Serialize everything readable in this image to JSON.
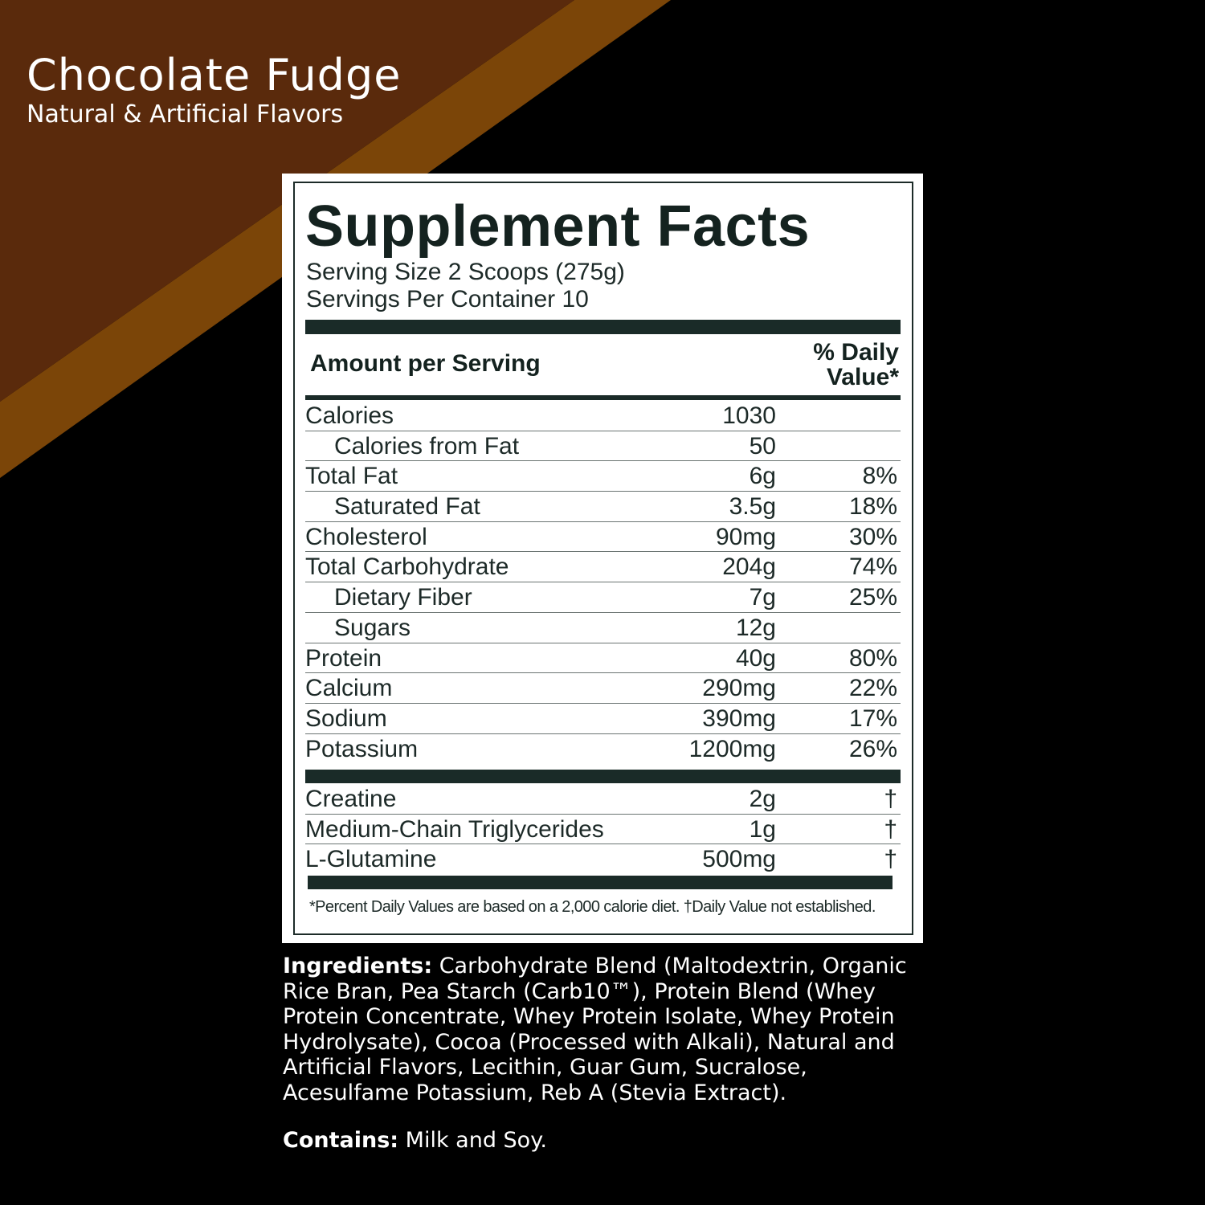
{
  "flavor": {
    "title": "Chocolate Fudge",
    "subtitle": "Natural & Artificial Flavors"
  },
  "colors": {
    "background": "#000000",
    "stripe_dark": "#5a2a0c",
    "stripe_light": "#7b4508",
    "panel_text": "#14221f"
  },
  "facts": {
    "title": "Supplement Facts",
    "serving_size": "Serving Size 2 Scoops (275g)",
    "servings_per_container": "Servings Per Container 10",
    "amount_header": "Amount per Serving",
    "dv_header_line1": "% Daily",
    "dv_header_line2": "Value*",
    "nutrients": [
      {
        "name": "Calories",
        "amount": "1030",
        "dv": "",
        "indent": false
      },
      {
        "name": "Calories from Fat",
        "amount": "50",
        "dv": "",
        "indent": true
      },
      {
        "name": "Total Fat",
        "amount": "6g",
        "dv": "8%",
        "indent": false
      },
      {
        "name": "Saturated Fat",
        "amount": "3.5g",
        "dv": "18%",
        "indent": true
      },
      {
        "name": "Cholesterol",
        "amount": "90mg",
        "dv": "30%",
        "indent": false
      },
      {
        "name": "Total Carbohydrate",
        "amount": "204g",
        "dv": "74%",
        "indent": false
      },
      {
        "name": "Dietary Fiber",
        "amount": "7g",
        "dv": "25%",
        "indent": true
      },
      {
        "name": "Sugars",
        "amount": "12g",
        "dv": "",
        "indent": true
      },
      {
        "name": "Protein",
        "amount": "40g",
        "dv": "80%",
        "indent": false
      },
      {
        "name": "Calcium",
        "amount": "290mg",
        "dv": "22%",
        "indent": false
      },
      {
        "name": "Sodium",
        "amount": "390mg",
        "dv": "17%",
        "indent": false
      },
      {
        "name": "Potassium",
        "amount": "1200mg",
        "dv": "26%",
        "indent": false
      }
    ],
    "other": [
      {
        "name": "Creatine",
        "amount": "2g",
        "dv": "†"
      },
      {
        "name": "Medium-Chain Triglycerides",
        "amount": "1g",
        "dv": "†"
      },
      {
        "name": "L-Glutamine",
        "amount": "500mg",
        "dv": "†"
      }
    ],
    "footnote": "*Percent Daily Values are based on a 2,000 calorie diet. †Daily Value not established."
  },
  "ingredients": {
    "label": "Ingredients:",
    "text": " Carbohydrate Blend (Maltodextrin, Organic Rice Bran, Pea Starch (Carb10™), Protein Blend (Whey Protein Concentrate, Whey Protein Isolate, Whey Protein Hydrolysate), Cocoa (Processed with Alkali), Natural and Artificial Flavors, Lecithin, Guar Gum, Sucralose, Acesulfame Potassium, Reb A (Stevia Extract)."
  },
  "contains": {
    "label": "Contains:",
    "text": " Milk and Soy."
  }
}
